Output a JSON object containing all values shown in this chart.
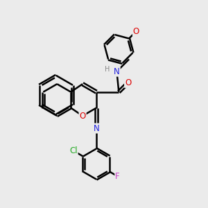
{
  "bg_color": "#ebebeb",
  "bond_color": "#000000",
  "bond_width": 1.8,
  "dbo": 0.055,
  "atom_colors": {
    "C": "#000000",
    "N": "#2222dd",
    "O": "#dd0000",
    "Cl": "#22aa22",
    "F": "#cc44cc",
    "H": "#888888"
  },
  "font_size": 8.5,
  "fig_size": [
    3.0,
    3.0
  ],
  "dpi": 100
}
